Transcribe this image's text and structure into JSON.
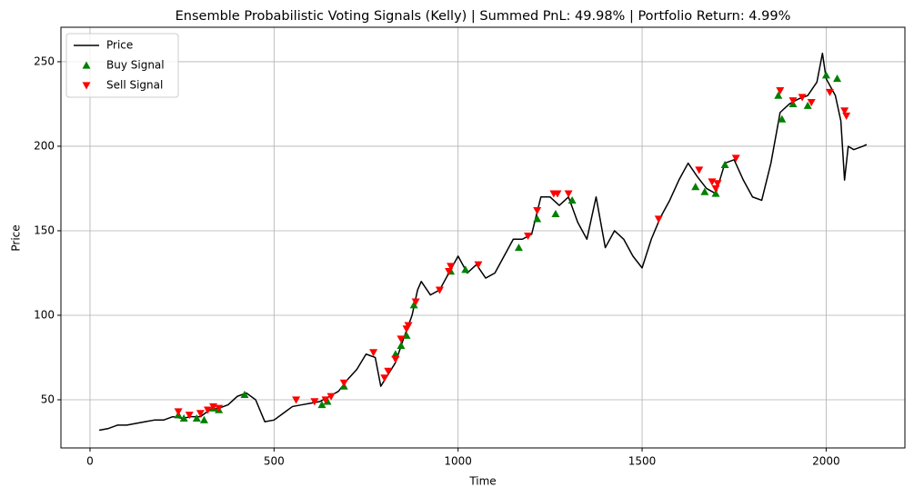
{
  "chart_data": {
    "type": "line",
    "title": "Ensemble Probabilistic Voting Signals (Kelly) | Summed PnL: 49.98% | Portfolio Return: 4.99%",
    "x_label": "Time",
    "y_label": "Price",
    "xlim": [
      -79,
      2214
    ],
    "ylim": [
      21.5,
      270.4
    ],
    "xticks": [
      0,
      500,
      1000,
      1500,
      2000
    ],
    "yticks": [
      50,
      100,
      150,
      200,
      250
    ],
    "grid": true,
    "legend": "upper left",
    "series": [
      {
        "name": "Price",
        "type": "line",
        "color": "#000000",
        "x": [
          25,
          50,
          75,
          100,
          125,
          150,
          175,
          200,
          225,
          250,
          275,
          300,
          325,
          350,
          375,
          400,
          425,
          450,
          475,
          500,
          525,
          550,
          575,
          600,
          625,
          650,
          675,
          700,
          725,
          750,
          775,
          790,
          810,
          830,
          850,
          875,
          890,
          900,
          925,
          950,
          975,
          1000,
          1025,
          1050,
          1075,
          1100,
          1125,
          1150,
          1175,
          1200,
          1225,
          1250,
          1275,
          1300,
          1325,
          1350,
          1375,
          1400,
          1425,
          1450,
          1475,
          1500,
          1525,
          1550,
          1575,
          1600,
          1625,
          1650,
          1675,
          1700,
          1725,
          1750,
          1775,
          1800,
          1825,
          1850,
          1875,
          1900,
          1925,
          1950,
          1975,
          1990,
          2000,
          2025,
          2040,
          2050,
          2060,
          2075,
          2100,
          2110
        ],
        "values": [
          32,
          33,
          35,
          35,
          36,
          37,
          38,
          38,
          40,
          39,
          40,
          40,
          44,
          45,
          47,
          52,
          54,
          50,
          37,
          38,
          42,
          46,
          47,
          48,
          49,
          52,
          55,
          62,
          68,
          77,
          75,
          58,
          65,
          72,
          85,
          100,
          115,
          120,
          112,
          115,
          125,
          135,
          125,
          130,
          122,
          125,
          135,
          145,
          145,
          148,
          170,
          170,
          165,
          170,
          155,
          145,
          170,
          140,
          150,
          145,
          135,
          128,
          145,
          158,
          168,
          180,
          190,
          182,
          175,
          172,
          190,
          192,
          180,
          170,
          168,
          190,
          220,
          225,
          228,
          230,
          238,
          255,
          240,
          230,
          215,
          180,
          200,
          198,
          200,
          201
        ]
      },
      {
        "name": "Buy Signal",
        "type": "scatter",
        "marker": "^",
        "color": "#008000",
        "x": [
          240,
          255,
          290,
          310,
          335,
          350,
          420,
          630,
          645,
          690,
          830,
          845,
          860,
          880,
          980,
          1020,
          1165,
          1215,
          1265,
          1310,
          1645,
          1670,
          1700,
          1725,
          1870,
          1880,
          1910,
          1950,
          2000,
          2030
        ],
        "values": [
          41,
          39,
          39,
          38,
          45,
          44,
          53,
          47,
          49,
          58,
          77,
          82,
          88,
          106,
          126,
          127,
          140,
          157,
          160,
          168,
          176,
          173,
          172,
          189,
          230,
          216,
          225,
          224,
          242,
          240
        ]
      },
      {
        "name": "Sell Signal",
        "type": "scatter",
        "marker": "v",
        "color": "#ff0000",
        "x": [
          240,
          270,
          300,
          320,
          335,
          350,
          560,
          610,
          640,
          655,
          690,
          770,
          800,
          810,
          830,
          845,
          860,
          865,
          885,
          950,
          975,
          980,
          1055,
          1190,
          1215,
          1260,
          1270,
          1300,
          1545,
          1655,
          1690,
          1700,
          1705,
          1755,
          1875,
          1910,
          1935,
          1960,
          2010,
          2050,
          2055
        ],
        "values": [
          43,
          41,
          42,
          44,
          46,
          45,
          50,
          49,
          50,
          52,
          60,
          78,
          63,
          67,
          74,
          86,
          92,
          94,
          108,
          115,
          126,
          129,
          130,
          147,
          162,
          172,
          172,
          172,
          157,
          186,
          179,
          175,
          178,
          193,
          233,
          227,
          229,
          226,
          232,
          221,
          218
        ]
      }
    ]
  }
}
